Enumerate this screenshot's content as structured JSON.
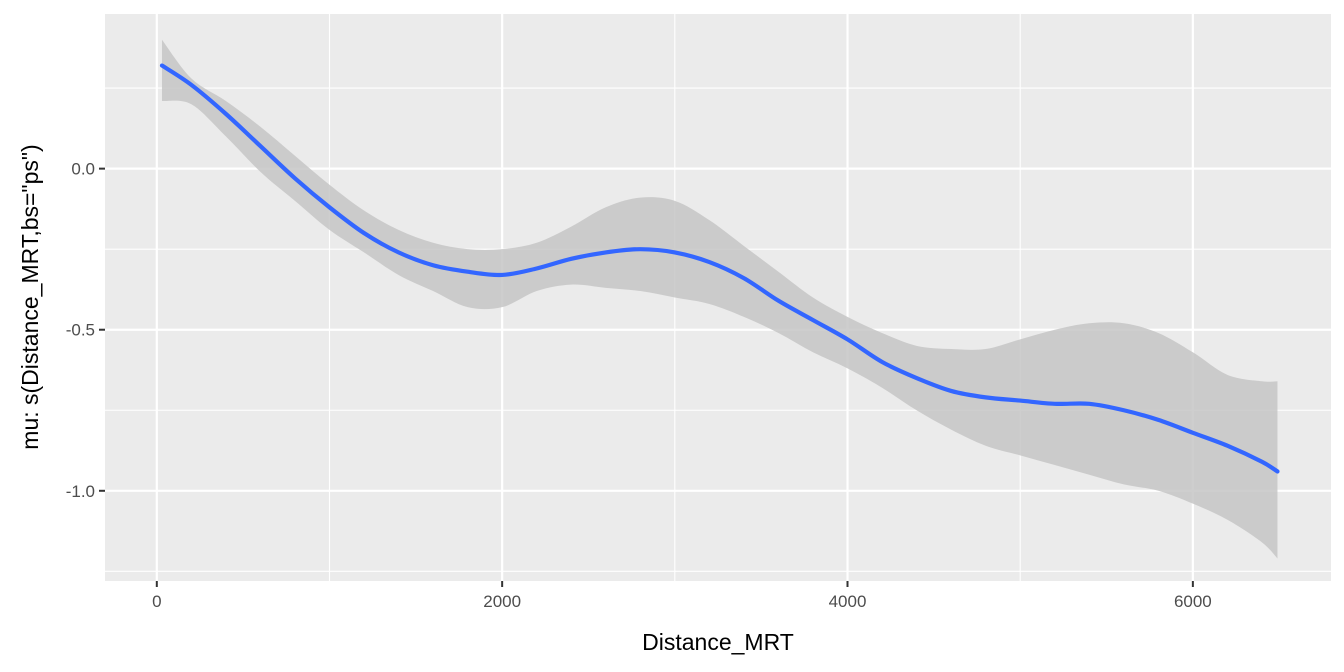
{
  "chart_data": {
    "type": "line",
    "title": "",
    "xlabel": "Distance_MRT",
    "ylabel": "mu: s(Distance_MRT,bs=\"ps\")",
    "xlim": [
      -300,
      6800
    ],
    "ylim": [
      -1.28,
      0.48
    ],
    "x_ticks": [
      0,
      2000,
      4000,
      6000
    ],
    "x_tick_labels": [
      "0",
      "2000",
      "4000",
      "6000"
    ],
    "y_ticks": [
      -1.0,
      -0.5,
      0.0
    ],
    "y_tick_labels": [
      "-1.0",
      "-0.5",
      "0.0"
    ],
    "grid": true,
    "legend": "none",
    "colors": {
      "panel": "#ebebeb",
      "grid": "#ffffff",
      "line": "#3366ff",
      "ribbon": "#c6c6c6"
    },
    "series": [
      {
        "x": [
          30,
          200,
          400,
          600,
          800,
          1000,
          1200,
          1400,
          1600,
          1800,
          2000,
          2200,
          2400,
          2600,
          2800,
          3000,
          3200,
          3400,
          3600,
          3800,
          4000,
          4200,
          4400,
          4600,
          4800,
          5000,
          5200,
          5400,
          5600,
          5800,
          6000,
          6200,
          6400,
          6490
        ],
        "y": [
          0.32,
          0.26,
          0.17,
          0.07,
          -0.03,
          -0.12,
          -0.2,
          -0.26,
          -0.3,
          -0.32,
          -0.33,
          -0.31,
          -0.28,
          -0.26,
          -0.25,
          -0.26,
          -0.29,
          -0.34,
          -0.41,
          -0.47,
          -0.53,
          -0.6,
          -0.65,
          -0.69,
          -0.71,
          -0.72,
          -0.73,
          -0.73,
          -0.75,
          -0.78,
          -0.82,
          -0.86,
          -0.91,
          -0.94
        ],
        "lower": [
          0.21,
          0.2,
          0.1,
          -0.01,
          -0.1,
          -0.19,
          -0.26,
          -0.33,
          -0.38,
          -0.43,
          -0.43,
          -0.38,
          -0.36,
          -0.37,
          -0.38,
          -0.4,
          -0.42,
          -0.46,
          -0.51,
          -0.57,
          -0.62,
          -0.68,
          -0.75,
          -0.81,
          -0.86,
          -0.89,
          -0.92,
          -0.95,
          -0.98,
          -1.0,
          -1.04,
          -1.09,
          -1.16,
          -1.21
        ],
        "upper": [
          0.4,
          0.28,
          0.21,
          0.13,
          0.04,
          -0.05,
          -0.13,
          -0.19,
          -0.23,
          -0.25,
          -0.25,
          -0.23,
          -0.18,
          -0.12,
          -0.09,
          -0.1,
          -0.16,
          -0.24,
          -0.32,
          -0.4,
          -0.46,
          -0.51,
          -0.55,
          -0.56,
          -0.56,
          -0.53,
          -0.5,
          -0.48,
          -0.48,
          -0.51,
          -0.57,
          -0.64,
          -0.66,
          -0.66
        ]
      }
    ]
  }
}
